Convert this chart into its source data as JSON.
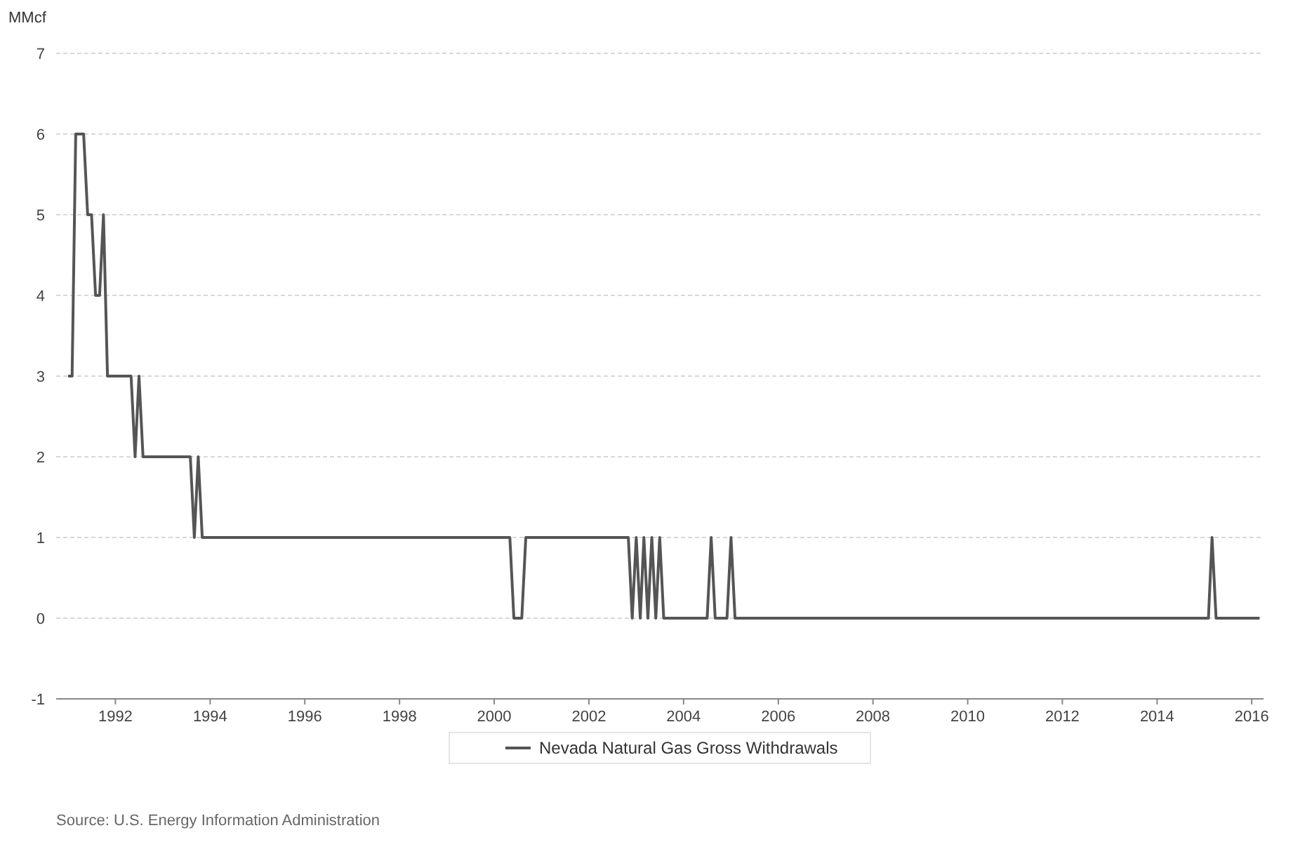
{
  "chart_data": {
    "type": "line",
    "ylabel": "MMcf",
    "x": [
      "1991-01",
      "1991-02",
      "1991-03",
      "1991-05",
      "1991-06",
      "1991-07",
      "1991-08",
      "1991-09",
      "1991-10",
      "1991-11",
      "1992-05",
      "1992-06",
      "1992-07",
      "1992-08",
      "1993-08",
      "1993-09",
      "1993-10",
      "1993-11",
      "2000-05",
      "2000-06",
      "2000-08",
      "2000-09",
      "2002-11",
      "2002-12",
      "2003-01",
      "2003-02",
      "2003-03",
      "2003-04",
      "2003-05",
      "2003-06",
      "2003-07",
      "2003-08",
      "2004-07",
      "2004-08",
      "2004-09",
      "2004-12",
      "2005-01",
      "2005-02",
      "2015-02",
      "2015-03",
      "2015-04",
      "2016-03"
    ],
    "series": [
      {
        "name": "Nevada Natural Gas Gross Withdrawals",
        "color": "#555555",
        "values": [
          3,
          3,
          6,
          6,
          5,
          5,
          4,
          4,
          5,
          3,
          3,
          2,
          3,
          2,
          2,
          1,
          2,
          1,
          1,
          0,
          0,
          1,
          1,
          0,
          1,
          0,
          1,
          0,
          1,
          0,
          1,
          0,
          0,
          1,
          0,
          0,
          1,
          0,
          0,
          1,
          0,
          0
        ]
      }
    ],
    "xlim": [
      "1990-10",
      "2016-04"
    ],
    "xticks": [
      "1992",
      "1994",
      "1996",
      "1998",
      "2000",
      "2002",
      "2004",
      "2006",
      "2008",
      "2010",
      "2012",
      "2014",
      "2016"
    ],
    "ylim": [
      -1,
      7
    ],
    "yticks": [
      -1,
      0,
      1,
      2,
      3,
      4,
      5,
      6,
      7
    ],
    "grid": "y",
    "legend": "bottom",
    "marker": "none",
    "line_style": "solid",
    "annotations": [
      "Source: U.S. Energy Information Administration"
    ]
  }
}
